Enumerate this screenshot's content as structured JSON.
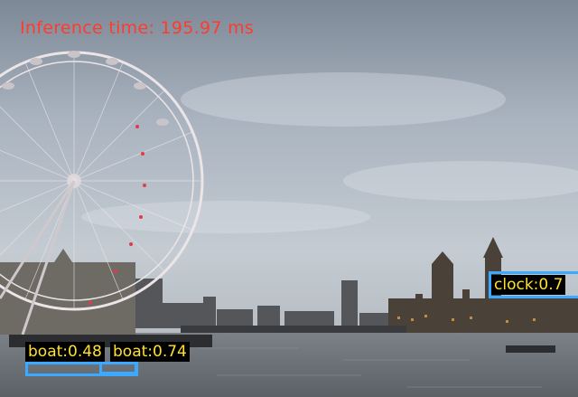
{
  "overlay": {
    "inference_text": "Inference time: 195.97 ms",
    "inference_color": "#ff3b2f"
  },
  "detections": [
    {
      "label": "boat:0.48",
      "box_color": "#3aa9ff",
      "label_bg": "#000000",
      "label_color": "#ffe033"
    },
    {
      "label": "boat:0.74",
      "box_color": "#3aa9ff",
      "label_bg": "#000000",
      "label_color": "#ffe033"
    },
    {
      "label": "clock:0.7",
      "box_color": "#3aa9ff",
      "label_bg": "#000000",
      "label_color": "#ffe033"
    }
  ]
}
